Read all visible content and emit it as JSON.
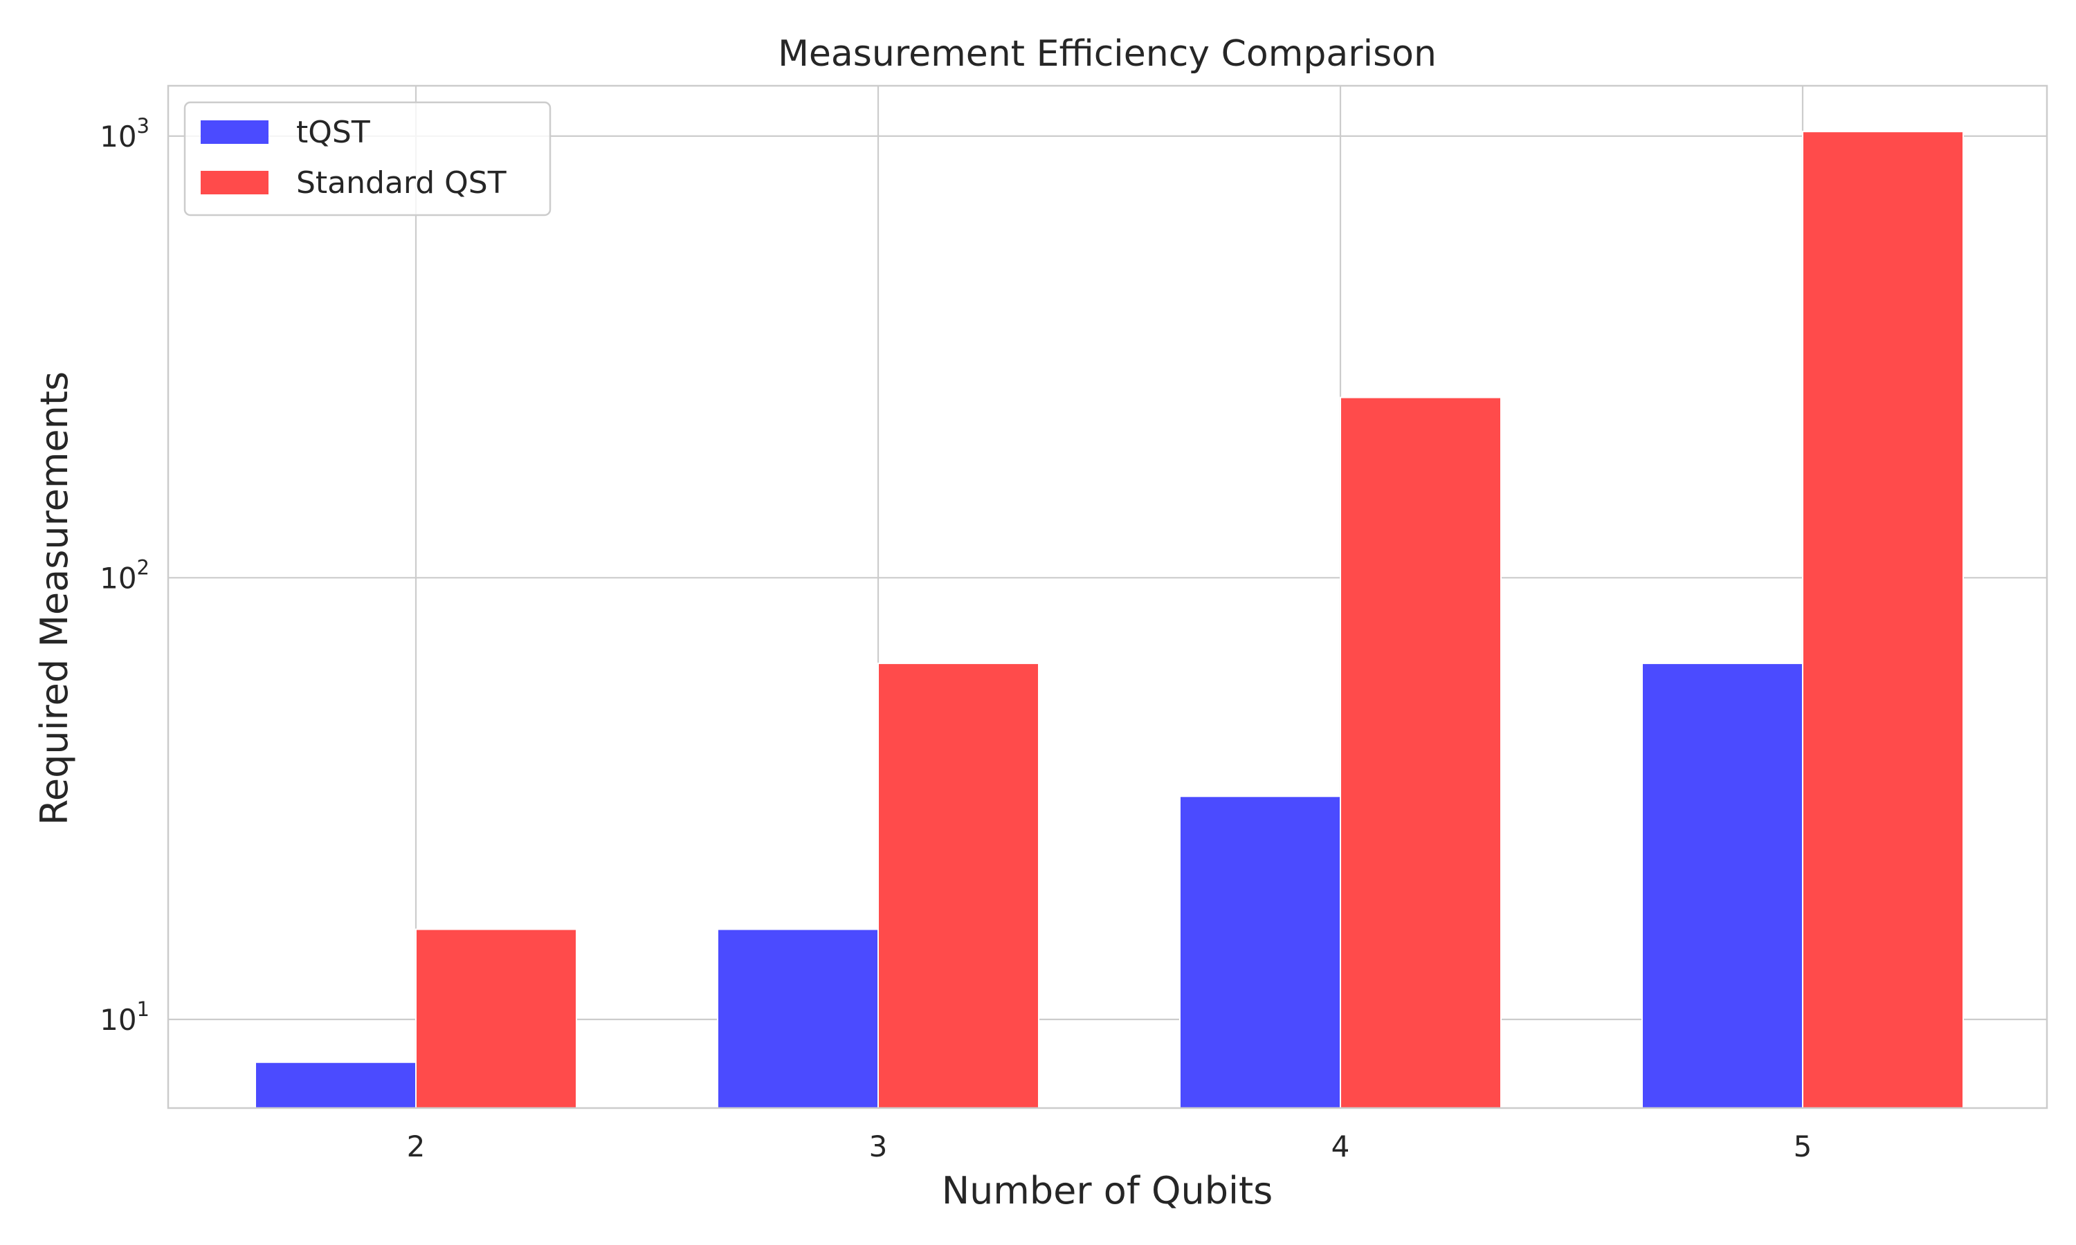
{
  "chart_data": {
    "type": "bar",
    "title": "Measurement Efficiency Comparison",
    "xlabel": "Number of Qubits",
    "ylabel": "Required Measurements",
    "categories": [
      "2",
      "3",
      "4",
      "5"
    ],
    "y_scale": "log",
    "ylim": [
      6.3,
      1300
    ],
    "y_ticks": [
      10,
      100,
      1000
    ],
    "y_tick_labels": [
      {
        "base": "10",
        "exp": "1"
      },
      {
        "base": "10",
        "exp": "2"
      },
      {
        "base": "10",
        "exp": "3"
      }
    ],
    "grid": true,
    "legend_position": "top-left",
    "series": [
      {
        "name": "tQST",
        "values": [
          8,
          16,
          32,
          64
        ],
        "color": "#4b4bff"
      },
      {
        "name": "Standard QST",
        "values": [
          16,
          64,
          256,
          1024
        ],
        "color": "#ff4b4b"
      }
    ]
  }
}
